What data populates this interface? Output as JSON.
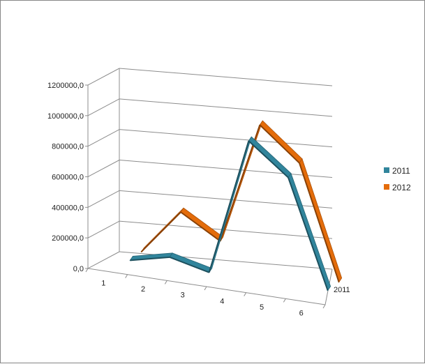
{
  "chart_data": {
    "type": "line",
    "subtype": "3d-line",
    "categories": [
      "1",
      "2",
      "3",
      "4",
      "5",
      "6"
    ],
    "series": [
      {
        "name": "2011",
        "color": "#31859C",
        "values": [
          0,
          60000,
          0,
          900000,
          700000,
          0
        ]
      },
      {
        "name": "2012",
        "color": "#E46C0A",
        "values": [
          0,
          300000,
          150000,
          950000,
          740000,
          0
        ]
      }
    ],
    "y_ticks": [
      "0,0",
      "200000,0",
      "400000,0",
      "600000,0",
      "800000,0",
      "1000000,0",
      "1200000,0"
    ],
    "ylim": [
      0,
      1200000
    ],
    "depth_axis_labels": [
      "2011"
    ],
    "legend": {
      "position": "right",
      "entries": [
        "2011",
        "2012"
      ]
    },
    "gridlines": true,
    "title": "",
    "xlabel": "",
    "ylabel": ""
  }
}
